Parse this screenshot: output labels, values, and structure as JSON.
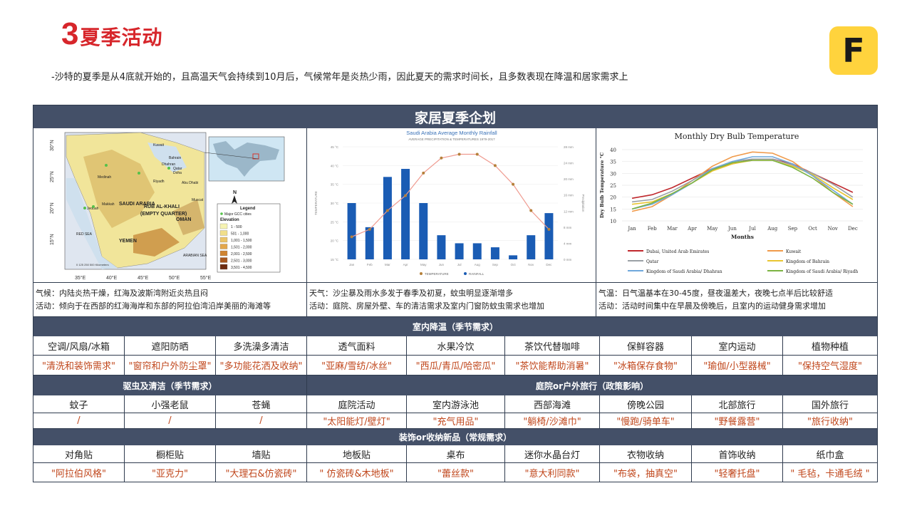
{
  "title": {
    "number": "3",
    "text": "夏季活动"
  },
  "logo": {
    "letter": "F",
    "color": "#ffd33d"
  },
  "description": "-沙特的夏季是从4底就开始的，且高温天气会持续到10月后，气候常年是炎热少雨，因此夏天的需求时间长，且多数表现在降温和居家需求上",
  "board": {
    "title": "家居夏季企划",
    "header_color": "#445068",
    "map": {
      "places": [
        "Kuwait",
        "Bahrain",
        "Dhahran",
        "Qatar",
        "Doha",
        "Riyadh",
        "Medinah",
        "Jeddah",
        "Makkah",
        "SAUDI ARABIA",
        "RUB AL-KHALI",
        "(EMPTY QUARTER)",
        "YEMEN",
        "OMAN",
        "Muscat",
        "Abu Dhabi",
        "RED SEA",
        "ARABIAN SEA"
      ],
      "lat_labels": [
        "30°N",
        "25°N",
        "20°N",
        "15°N"
      ],
      "lon_labels": [
        "35°E",
        "40°E",
        "45°E",
        "50°E",
        "55°E"
      ],
      "legend_title": "Legend",
      "legend_city": "Major GCC cities",
      "legend_elev": "Elevation",
      "elev_bins": [
        "1 - 500",
        "501 - 1,000",
        "1,001 - 1,500",
        "1,501 - 2,000",
        "2,001 - 2,500",
        "2,501 - 3,000",
        "3,501 - 4,500"
      ],
      "elev_colors": [
        "#f6f3b3",
        "#f1df8b",
        "#ebc468",
        "#e3a74c",
        "#cf8432",
        "#a8581f",
        "#6e2d12"
      ],
      "north": "N",
      "scale": "0  125  250       500 Kilometers"
    },
    "rain_chart": {
      "type": "bar",
      "title": "Saudi Arabia Average Monthly Rainfall",
      "subtitle": "AVERAGE PRECIPITATION & TEMPERATURES 1979-2017",
      "categories": [
        "Jan",
        "Feb",
        "Mar",
        "Apr",
        "May",
        "Jun",
        "Jul",
        "Aug",
        "Sep",
        "Oct",
        "Nov",
        "Dec"
      ],
      "rainfall_mm": [
        14,
        8,
        20.5,
        22.5,
        14,
        6,
        4,
        4,
        3,
        1,
        6,
        11.5
      ],
      "temperature_c": [
        21,
        23,
        28,
        32,
        38,
        42,
        43,
        43,
        40,
        35,
        28,
        23
      ],
      "y_left_ticks": [
        "45 °C",
        "40 °C",
        "35 °C",
        "30 °C",
        "25 °C",
        "20 °C",
        "15 °C"
      ],
      "y_right_ticks": [
        "28 mm",
        "24 mm",
        "20 mm",
        "16 mm",
        "12 mm",
        "8 mm",
        "4 mm",
        "0 mm"
      ],
      "ylabel_left": "TEMPERATURE",
      "ylabel_right": "Precipitation",
      "legend": [
        "TEMPERATURE",
        "RAINFALL"
      ],
      "bar_color": "#1a5cb4",
      "line_color": "#ef9a8f"
    },
    "temp_chart": {
      "type": "line",
      "title": "Monthly Dry Bulb Temperature",
      "xlabel": "Months",
      "ylabel": "Dry Bulb Temperature °C",
      "ylim": [
        10,
        40
      ],
      "y_ticks": [
        "40",
        "35",
        "30",
        "25",
        "20",
        "15",
        "10"
      ],
      "categories": [
        "Jan",
        "Feb",
        "Mar",
        "Apr",
        "May",
        "Jun",
        "Jul",
        "Aug",
        "Sep",
        "Oct",
        "Nov",
        "Dec"
      ],
      "series": [
        {
          "name": "Dubai, United Arab Emirates",
          "color": "#c0282d",
          "values": [
            19.5,
            21,
            24,
            28,
            32,
            34,
            36,
            36,
            34,
            30,
            26,
            22
          ]
        },
        {
          "name": "Kuwait",
          "color": "#f09a4a",
          "values": [
            14,
            16,
            21,
            27,
            33,
            37,
            39,
            38.5,
            35,
            29,
            22,
            16
          ]
        },
        {
          "name": "Qatar",
          "color": "#9aa0a6",
          "values": [
            18,
            19,
            22.5,
            27,
            32,
            35,
            36,
            36,
            33.5,
            30,
            25.5,
            20
          ]
        },
        {
          "name": "Kingdom of Bahrain",
          "color": "#e8c531",
          "values": [
            17,
            18,
            21.5,
            26,
            31,
            34,
            35.5,
            35.5,
            33,
            29.5,
            24,
            19
          ]
        },
        {
          "name": "Kingdom of Saudi Arabia/ Dhahran",
          "color": "#6fa8dc",
          "values": [
            15,
            17,
            21,
            26,
            32,
            35,
            37,
            37,
            34,
            29,
            23,
            17
          ]
        },
        {
          "name": "Kingdom of Saudi Arabia/ Riyadh",
          "color": "#7cb342",
          "values": [
            15,
            17.5,
            21.5,
            26,
            31.5,
            34.5,
            35.5,
            35.5,
            32.5,
            28,
            22,
            17
          ]
        }
      ]
    },
    "notes": [
      {
        "line1": "气候：内陆炎热干燥，红海及波斯湾附近炎热且闷",
        "line2": "活动：倾向于在西部的红海海岸和东部的阿拉伯湾沿岸美丽的海滩等"
      },
      {
        "line1": "天气：沙尘暴及雨水多发于春季及初夏，蚊虫明显逐渐增多",
        "line2": "活动：庭院、房屋外壁、车的清洁需求及室内门窗防蚊虫需求也增加"
      },
      {
        "line1": "气温：日气温基本在30-45度，昼夜温差大，夜晚七点半后比较舒适",
        "line2": "活动：活动时间集中在早晨及傍晚后，且室内的运动健身需求增加"
      }
    ],
    "section_indoor": "室内降温（季节需求）",
    "indoor": {
      "items": [
        "空调/风扇/冰箱",
        "遮阳防晒",
        "多洗澡多清洁",
        "透气面料",
        "水果冷饮",
        "茶饮代替咖啡",
        "保鲜容器",
        "室内运动",
        "植物种植"
      ],
      "values": [
        "\"清洗和装饰需求\"",
        "\"窗帘和户外防尘罩\"",
        "\"多功能花洒及收纳\"",
        "\"亚麻/雪纺/冰丝\"",
        "\"西瓜/青瓜/哈密瓜\"",
        "\"茶饮能帮助消暑\"",
        "\"冰箱保存食物\"",
        "\"瑜伽/小型器械\"",
        "\"保持空气湿度\""
      ]
    },
    "section_pest": "驱虫及清洁（季节需求）",
    "section_outdoor": "庭院or户外旅行（政策影响）",
    "pest_outdoor": {
      "items": [
        "蚊子",
        "小强老鼠",
        "苍蝇",
        "庭院活动",
        "室内游泳池",
        "西部海滩",
        "傍晚公园",
        "北部旅行",
        "国外旅行"
      ],
      "values": [
        "/",
        "/",
        "/",
        "\"太阳能灯/壁灯\"",
        "\"充气用品\"",
        "\"躺椅/沙滩巾\"",
        "\"慢跑/骑单车\"",
        "\"野餐露营\"",
        "\"旅行收纳\""
      ]
    },
    "section_decor": "装饰or收纳新品（常规需求）",
    "decor": {
      "items": [
        "对角贴",
        "橱柜贴",
        "墙贴",
        "地板贴",
        "桌布",
        "迷你水晶台灯",
        "衣物收纳",
        "首饰收纳",
        "纸巾盒"
      ],
      "values": [
        "\"阿拉伯风格\"",
        "\"亚克力\"",
        "\"大理石&仿瓷砖\"",
        "\" 仿瓷砖&木地板\"",
        "\"蕾丝款\"",
        "\"意大利同款\"",
        "\"布袋，抽真空\"",
        "\"轻奢托盘\"",
        "\" 毛毡，卡通毛绒 \""
      ]
    }
  }
}
